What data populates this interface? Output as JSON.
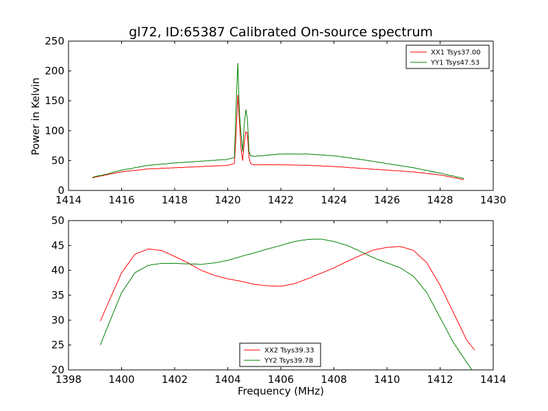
{
  "figure": {
    "title": "gl72, ID:65387 Calibrated On-source spectrum"
  },
  "colors": {
    "red": "#ff0000",
    "green": "#008000",
    "axis": "#000000",
    "background": "#ffffff"
  },
  "chart_data": [
    {
      "type": "line",
      "title": "gl72, ID:65387 Calibrated On-source spectrum",
      "xlabel": "",
      "ylabel": "Power in Kelvin",
      "xlim": [
        1414,
        1430
      ],
      "ylim": [
        0,
        250
      ],
      "xticks": [
        "1414",
        "1416",
        "1418",
        "1420",
        "1422",
        "1424",
        "1426",
        "1428",
        "1430"
      ],
      "yticks": [
        "0",
        "50",
        "100",
        "150",
        "200",
        "250"
      ],
      "grid": false,
      "legend_position": "top-right",
      "series": [
        {
          "name": "XX1 Tsys37.00",
          "color": "#ff0000",
          "x": [
            1414.9,
            1415.5,
            1416.0,
            1417.0,
            1418.0,
            1419.0,
            1420.0,
            1420.25,
            1420.32,
            1420.38,
            1420.44,
            1420.5,
            1420.56,
            1420.62,
            1420.68,
            1420.74,
            1420.8,
            1420.86,
            1421.0,
            1421.5,
            1422.0,
            1423.0,
            1424.0,
            1425.0,
            1426.0,
            1427.0,
            1428.0,
            1428.9
          ],
          "y": [
            21,
            27,
            31,
            36,
            38,
            40,
            42,
            45,
            100,
            160,
            115,
            70,
            50,
            80,
            98,
            95,
            55,
            45,
            43,
            43,
            43,
            42,
            40,
            37,
            34,
            31,
            26,
            18
          ]
        },
        {
          "name": "YY1 Tsys47.53",
          "color": "#008000",
          "x": [
            1414.9,
            1415.5,
            1416.0,
            1417.0,
            1418.0,
            1419.0,
            1420.0,
            1420.25,
            1420.32,
            1420.38,
            1420.44,
            1420.5,
            1420.56,
            1420.62,
            1420.68,
            1420.74,
            1420.8,
            1420.86,
            1421.0,
            1421.5,
            1422.0,
            1423.0,
            1424.0,
            1425.0,
            1426.0,
            1427.0,
            1428.0,
            1428.9
          ],
          "y": [
            22,
            28,
            34,
            42,
            46,
            49,
            52,
            55,
            150,
            213,
            130,
            95,
            65,
            110,
            135,
            120,
            65,
            58,
            57,
            59,
            61,
            61,
            58,
            52,
            45,
            38,
            29,
            20
          ]
        }
      ]
    },
    {
      "type": "line",
      "title": "",
      "xlabel": "Frequency (MHz)",
      "ylabel": "",
      "xlim": [
        1398,
        1414
      ],
      "ylim": [
        20,
        50
      ],
      "xticks": [
        "1398",
        "1400",
        "1402",
        "1404",
        "1406",
        "1408",
        "1410",
        "1412",
        "1414"
      ],
      "yticks": [
        "20",
        "25",
        "30",
        "35",
        "40",
        "45",
        "50"
      ],
      "grid": false,
      "legend_position": "bottom-center",
      "series": [
        {
          "name": "XX2 Tsys39.33",
          "color": "#ff0000",
          "x": [
            1399.2,
            1399.5,
            1400.0,
            1400.5,
            1401.0,
            1401.5,
            1402.0,
            1402.5,
            1403.0,
            1403.5,
            1404.0,
            1404.5,
            1405.0,
            1405.5,
            1406.0,
            1406.5,
            1407.0,
            1407.5,
            1408.0,
            1408.5,
            1409.0,
            1409.5,
            1410.0,
            1410.5,
            1411.0,
            1411.5,
            1412.0,
            1412.5,
            1413.0,
            1413.3
          ],
          "y": [
            29.8,
            33.5,
            39.5,
            43.2,
            44.3,
            44.0,
            42.8,
            41.5,
            40.0,
            39.0,
            38.3,
            37.8,
            37.2,
            36.9,
            36.8,
            37.3,
            38.3,
            39.4,
            40.5,
            41.8,
            43.0,
            44.1,
            44.6,
            44.8,
            44.0,
            41.5,
            37.0,
            31.5,
            26.0,
            24.0
          ]
        },
        {
          "name": "YY2 Tsys39.78",
          "color": "#008000",
          "x": [
            1399.2,
            1399.5,
            1400.0,
            1400.5,
            1401.0,
            1401.5,
            1402.0,
            1402.5,
            1403.0,
            1403.5,
            1404.0,
            1404.5,
            1405.0,
            1405.5,
            1406.0,
            1406.5,
            1407.0,
            1407.5,
            1408.0,
            1408.5,
            1409.0,
            1409.5,
            1410.0,
            1410.5,
            1411.0,
            1411.5,
            1412.0,
            1412.5,
            1413.0,
            1413.2
          ],
          "y": [
            25.0,
            29.0,
            35.5,
            39.5,
            41.0,
            41.4,
            41.4,
            41.3,
            41.2,
            41.5,
            42.0,
            42.8,
            43.5,
            44.3,
            45.0,
            45.8,
            46.2,
            46.3,
            45.8,
            45.0,
            43.8,
            42.5,
            41.5,
            40.5,
            38.8,
            35.5,
            30.5,
            25.5,
            21.5,
            20.0
          ]
        }
      ]
    }
  ]
}
